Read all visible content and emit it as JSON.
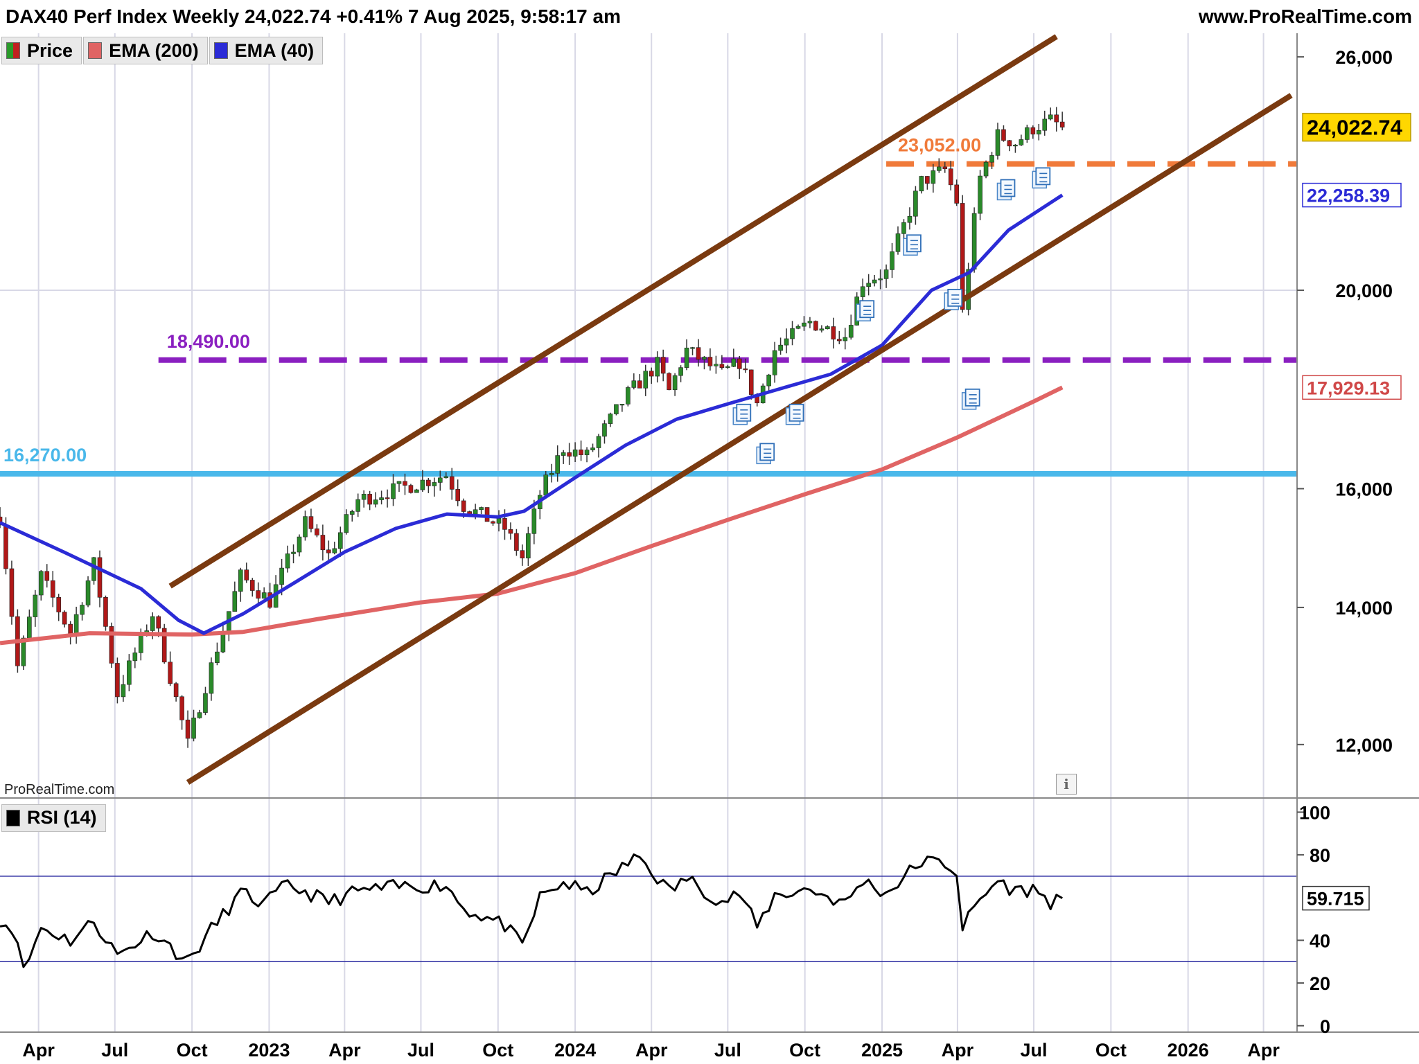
{
  "header": {
    "title": "DAX40 Perf Index Weekly 24,022.74 +0.41% 7 Aug 2025, 9:58:17 am",
    "site": "www.ProRealTime.com"
  },
  "legend": {
    "price": "Price",
    "ema200": "EMA (200)",
    "ema40": "EMA (40)"
  },
  "rsi_legend": "RSI (14)",
  "watermark": "ProRealTime.com",
  "colors": {
    "up": "#2a8a2a",
    "down": "#b01818",
    "ema200": "#e06464",
    "ema40": "#2b2bd6",
    "channel": "#7a3a10",
    "level_23052": "#f07a3a",
    "level_18490": "#8a1fc0",
    "level_16270": "#4ab8ea",
    "rsi": "#000000",
    "rsi_bands": "#2a2aa0"
  },
  "chart_data": [
    {
      "type": "candlestick",
      "panel": "price",
      "y_scale": "log",
      "ylim": [
        11300,
        26700
      ],
      "y_ticks": [
        12000,
        14000,
        16000,
        20000,
        26000
      ],
      "y_tick_labels": [
        "12,000",
        "14,000",
        "16,000",
        "20,000",
        "26,000"
      ],
      "x_range": [
        "2022-02-14",
        "2026-05-11"
      ],
      "x_ticks": [
        {
          "date": "2022-04-01",
          "label": "Apr"
        },
        {
          "date": "2022-07-01",
          "label": "Jul"
        },
        {
          "date": "2022-10-01",
          "label": "Oct"
        },
        {
          "date": "2023-01-01",
          "label": "2023"
        },
        {
          "date": "2023-04-01",
          "label": "Apr"
        },
        {
          "date": "2023-07-01",
          "label": "Jul"
        },
        {
          "date": "2023-10-01",
          "label": "Oct"
        },
        {
          "date": "2024-01-01",
          "label": "2024"
        },
        {
          "date": "2024-04-01",
          "label": "Apr"
        },
        {
          "date": "2024-07-01",
          "label": "Jul"
        },
        {
          "date": "2024-10-01",
          "label": "Oct"
        },
        {
          "date": "2025-01-01",
          "label": "2025"
        },
        {
          "date": "2025-04-01",
          "label": "Apr"
        },
        {
          "date": "2025-07-01",
          "label": "Jul"
        },
        {
          "date": "2025-10-01",
          "label": "Oct"
        },
        {
          "date": "2026-01-01",
          "label": "2026"
        },
        {
          "date": "2026-04-01",
          "label": "Apr"
        }
      ],
      "price_path": [
        [
          "2022-02-14",
          15500
        ],
        [
          "2022-03-07",
          13100
        ],
        [
          "2022-04-04",
          14500
        ],
        [
          "2022-05-09",
          13600
        ],
        [
          "2022-06-06",
          14700
        ],
        [
          "2022-07-04",
          12700
        ],
        [
          "2022-08-15",
          13900
        ],
        [
          "2022-09-26",
          12000
        ],
        [
          "2022-10-24",
          13100
        ],
        [
          "2022-11-28",
          14500
        ],
        [
          "2023-01-02",
          14100
        ],
        [
          "2023-02-13",
          15400
        ],
        [
          "2023-03-13",
          14850
        ],
        [
          "2023-04-17",
          15800
        ],
        [
          "2023-06-05",
          16000
        ],
        [
          "2023-07-31",
          16250
        ],
        [
          "2023-08-21",
          15700
        ],
        [
          "2023-10-09",
          15300
        ],
        [
          "2023-10-30",
          14800
        ],
        [
          "2023-11-20",
          15900
        ],
        [
          "2023-12-18",
          16750
        ],
        [
          "2024-01-15",
          16600
        ],
        [
          "2024-03-04",
          17800
        ],
        [
          "2024-04-08",
          18400
        ],
        [
          "2024-04-22",
          17850
        ],
        [
          "2024-05-13",
          18700
        ],
        [
          "2024-06-24",
          18200
        ],
        [
          "2024-07-15",
          18450
        ],
        [
          "2024-08-05",
          17600
        ],
        [
          "2024-08-26",
          18700
        ],
        [
          "2024-10-07",
          19300
        ],
        [
          "2024-11-18",
          19000
        ],
        [
          "2024-12-09",
          20200
        ],
        [
          "2025-01-06",
          20400
        ],
        [
          "2025-02-17",
          22600
        ],
        [
          "2025-03-17",
          22900
        ],
        [
          "2025-03-31",
          22100
        ],
        [
          "2025-04-07",
          19500
        ],
        [
          "2025-04-28",
          22700
        ],
        [
          "2025-05-19",
          23800
        ],
        [
          "2025-06-09",
          23600
        ],
        [
          "2025-06-30",
          24000
        ],
        [
          "2025-07-21",
          24200
        ],
        [
          "2025-08-04",
          24022.74
        ]
      ],
      "series": [
        {
          "name": "EMA (200)",
          "last_value": 17929.13,
          "values": [
            [
              "2022-02-14",
              13450
            ],
            [
              "2022-06-01",
              13600
            ],
            [
              "2022-10-01",
              13580
            ],
            [
              "2022-12-01",
              13620
            ],
            [
              "2023-03-01",
              13820
            ],
            [
              "2023-07-01",
              14080
            ],
            [
              "2023-10-01",
              14220
            ],
            [
              "2024-01-01",
              14550
            ],
            [
              "2024-04-01",
              15000
            ],
            [
              "2024-07-01",
              15450
            ],
            [
              "2024-10-01",
              15900
            ],
            [
              "2025-01-01",
              16350
            ],
            [
              "2025-04-01",
              16950
            ],
            [
              "2025-07-01",
              17650
            ],
            [
              "2025-08-04",
              17929.13
            ]
          ]
        },
        {
          "name": "EMA (40)",
          "last_value": 22258.39,
          "values": [
            [
              "2022-02-14",
              15400
            ],
            [
              "2022-05-01",
              14900
            ],
            [
              "2022-08-01",
              14300
            ],
            [
              "2022-09-15",
              13800
            ],
            [
              "2022-10-15",
              13600
            ],
            [
              "2022-12-01",
              13900
            ],
            [
              "2023-02-01",
              14400
            ],
            [
              "2023-04-01",
              14900
            ],
            [
              "2023-06-01",
              15300
            ],
            [
              "2023-08-01",
              15550
            ],
            [
              "2023-10-01",
              15500
            ],
            [
              "2023-11-01",
              15600
            ],
            [
              "2024-01-01",
              16200
            ],
            [
              "2024-03-01",
              16800
            ],
            [
              "2024-05-01",
              17300
            ],
            [
              "2024-07-01",
              17600
            ],
            [
              "2024-09-01",
              17900
            ],
            [
              "2024-11-01",
              18200
            ],
            [
              "2025-01-01",
              18800
            ],
            [
              "2025-03-01",
              20000
            ],
            [
              "2025-04-15",
              20400
            ],
            [
              "2025-06-01",
              21400
            ],
            [
              "2025-08-04",
              22258.39
            ]
          ]
        }
      ],
      "channel": [
        {
          "from": [
            "2022-09-05",
            14340
          ],
          "to": [
            "2025-07-28",
            26600
          ]
        },
        {
          "from": [
            "2022-09-26",
            11500
          ],
          "to": [
            "2026-05-04",
            24900
          ]
        }
      ],
      "levels": [
        {
          "value": 23052,
          "label": "23,052.00",
          "style": "dashed",
          "color": "#f07a3a"
        },
        {
          "value": 18490,
          "label": "18,490.00",
          "style": "dashed",
          "color": "#8a1fc0"
        },
        {
          "value": 16270,
          "label": "16,270.00",
          "style": "solid",
          "color": "#4ab8ea"
        }
      ],
      "value_tags": [
        {
          "value": 24022.74,
          "label": "24,022.74"
        },
        {
          "value": 22258.39,
          "label": "22,258.39"
        },
        {
          "value": 17929.13,
          "label": "17,929.13"
        }
      ],
      "news_markers": [
        [
          "2024-07-15",
          17400
        ],
        [
          "2024-08-12",
          16650
        ],
        [
          "2024-09-16",
          17400
        ],
        [
          "2024-12-09",
          19550
        ],
        [
          "2025-02-03",
          21050
        ],
        [
          "2025-03-24",
          19800
        ],
        [
          "2025-04-14",
          17700
        ],
        [
          "2025-05-26",
          22400
        ],
        [
          "2025-07-07",
          22700
        ]
      ]
    },
    {
      "type": "line",
      "panel": "rsi",
      "ylim": [
        -3,
        105
      ],
      "y_ticks": [
        0,
        20,
        40,
        80,
        100
      ],
      "y_tick_labels": [
        "0",
        "20",
        "40",
        "80",
        "100"
      ],
      "bands": [
        30,
        70
      ],
      "series": [
        {
          "name": "RSI (14)",
          "last_value": 59.715,
          "label": "59.715",
          "values": [
            [
              "2022-02-14",
              50
            ],
            [
              "2022-03-07",
              42
            ],
            [
              "2022-03-14",
              25
            ],
            [
              "2022-04-04",
              46
            ],
            [
              "2022-05-09",
              40
            ],
            [
              "2022-06-06",
              49
            ],
            [
              "2022-07-04",
              33
            ],
            [
              "2022-08-15",
              44
            ],
            [
              "2022-09-26",
              30
            ],
            [
              "2022-10-24",
              45
            ],
            [
              "2022-11-28",
              62
            ],
            [
              "2022-12-26",
              57
            ],
            [
              "2023-01-23",
              66
            ],
            [
              "2023-03-13",
              58
            ],
            [
              "2023-04-17",
              63
            ],
            [
              "2023-06-05",
              65
            ],
            [
              "2023-07-31",
              66
            ],
            [
              "2023-08-21",
              55
            ],
            [
              "2023-10-09",
              47
            ],
            [
              "2023-10-30",
              37
            ],
            [
              "2023-11-20",
              60
            ],
            [
              "2023-12-18",
              67
            ],
            [
              "2024-01-15",
              62
            ],
            [
              "2024-03-04",
              76
            ],
            [
              "2024-03-18",
              79
            ],
            [
              "2024-04-22",
              63
            ],
            [
              "2024-05-13",
              69
            ],
            [
              "2024-06-24",
              58
            ],
            [
              "2024-07-15",
              62
            ],
            [
              "2024-08-05",
              46
            ],
            [
              "2024-08-26",
              61
            ],
            [
              "2024-10-07",
              64
            ],
            [
              "2024-11-18",
              57
            ],
            [
              "2024-12-09",
              68
            ],
            [
              "2025-01-06",
              62
            ],
            [
              "2025-02-17",
              77
            ],
            [
              "2025-03-17",
              76
            ],
            [
              "2025-03-31",
              72
            ],
            [
              "2025-04-07",
              46
            ],
            [
              "2025-04-28",
              59
            ],
            [
              "2025-05-19",
              68
            ],
            [
              "2025-06-09",
              63
            ],
            [
              "2025-06-30",
              64
            ],
            [
              "2025-07-21",
              58
            ],
            [
              "2025-08-04",
              59.715
            ]
          ]
        }
      ]
    }
  ]
}
